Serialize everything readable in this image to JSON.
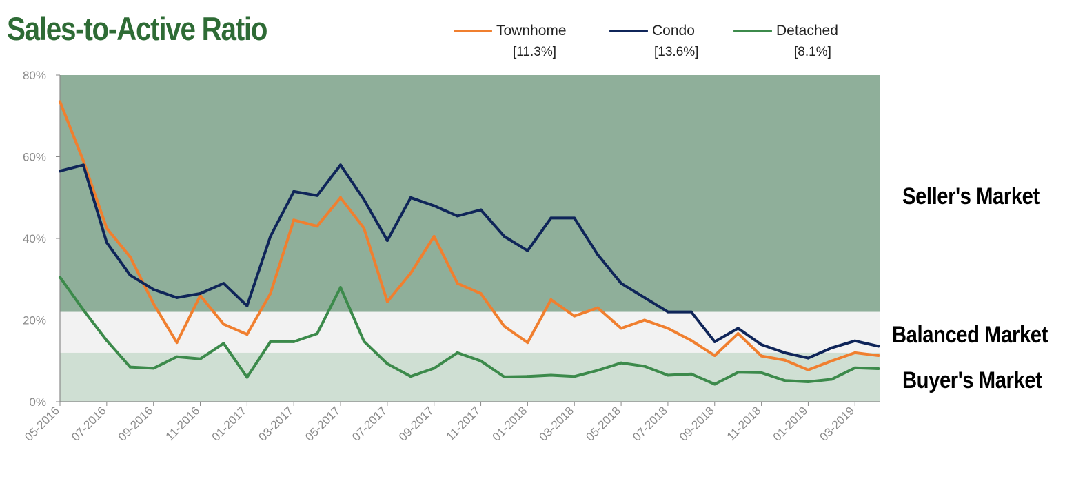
{
  "title": "Sales-to-Active Ratio",
  "legend": [
    {
      "name": "Townhome",
      "value": "[11.3%]",
      "color": "#f07f2f"
    },
    {
      "name": "Condo",
      "value": "[13.6%]",
      "color": "#0f2559"
    },
    {
      "name": "Detached",
      "value": "[8.1%]",
      "color": "#3c8a4b"
    }
  ],
  "zones": {
    "seller": {
      "label": "Seller's Market",
      "from": 22,
      "to": 80,
      "color": "#8faf9a"
    },
    "balanced": {
      "label": "Balanced Market",
      "from": 12,
      "to": 22,
      "color": "#f2f2f2"
    },
    "buyer": {
      "label": "Buyer's Market",
      "from": 0,
      "to": 12,
      "color": "#cfdfd3"
    }
  },
  "chart_data": {
    "type": "line",
    "title": "Sales-to-Active Ratio",
    "xlabel": "",
    "ylabel": "",
    "ylim": [
      0,
      80
    ],
    "yticks": [
      "0%",
      "20%",
      "40%",
      "60%",
      "80%"
    ],
    "grid": false,
    "legend_position": "top",
    "x": [
      "05-2016",
      "06-2016",
      "07-2016",
      "08-2016",
      "09-2016",
      "10-2016",
      "11-2016",
      "12-2016",
      "01-2017",
      "02-2017",
      "03-2017",
      "04-2017",
      "05-2017",
      "06-2017",
      "07-2017",
      "08-2017",
      "09-2017",
      "10-2017",
      "11-2017",
      "12-2017",
      "01-2018",
      "02-2018",
      "03-2018",
      "04-2018",
      "05-2018",
      "06-2018",
      "07-2018",
      "08-2018",
      "09-2018",
      "10-2018",
      "11-2018",
      "12-2018",
      "01-2019",
      "02-2019",
      "03-2019",
      "04-2019"
    ],
    "xtick_labels": [
      "05-2016",
      "07-2016",
      "09-2016",
      "11-2016",
      "01-2017",
      "03-2017",
      "05-2017",
      "07-2017",
      "09-2017",
      "11-2017",
      "01-2018",
      "03-2018",
      "05-2018",
      "07-2018",
      "09-2018",
      "11-2018",
      "01-2019",
      "03-2019"
    ],
    "series": [
      {
        "name": "Townhome",
        "color": "#f07f2f",
        "values": [
          73.5,
          59,
          42.5,
          35.5,
          24,
          14.5,
          26,
          19,
          16.5,
          26.5,
          44.5,
          43,
          50,
          42.5,
          24.5,
          31.5,
          40.5,
          29,
          26.5,
          18.5,
          14.5,
          25,
          21,
          23,
          18,
          20,
          18,
          15,
          11.3,
          16.7,
          11.2,
          10.2,
          7.8,
          10,
          12,
          11.3
        ]
      },
      {
        "name": "Condo",
        "color": "#0f2559",
        "values": [
          56.5,
          58,
          39,
          31,
          27.5,
          25.5,
          26.5,
          29,
          23.5,
          40.5,
          51.5,
          50.5,
          58,
          49.5,
          39.5,
          50,
          48,
          45.5,
          47,
          40.5,
          37,
          45,
          45,
          36,
          29,
          25.5,
          22,
          22,
          14.7,
          18,
          14,
          12,
          10.7,
          13.2,
          14.9,
          13.6
        ]
      },
      {
        "name": "Detached",
        "color": "#3c8a4b",
        "values": [
          30.5,
          22.5,
          15,
          8.5,
          8.2,
          11,
          10.5,
          14.3,
          6,
          14.7,
          14.7,
          16.7,
          28,
          14.8,
          9.3,
          6.2,
          8.2,
          12,
          10,
          6.1,
          6.2,
          6.5,
          6.2,
          7.7,
          9.5,
          8.7,
          6.5,
          6.8,
          4.3,
          7.2,
          7.1,
          5.2,
          4.9,
          5.5,
          8.3,
          8.1
        ]
      }
    ]
  }
}
